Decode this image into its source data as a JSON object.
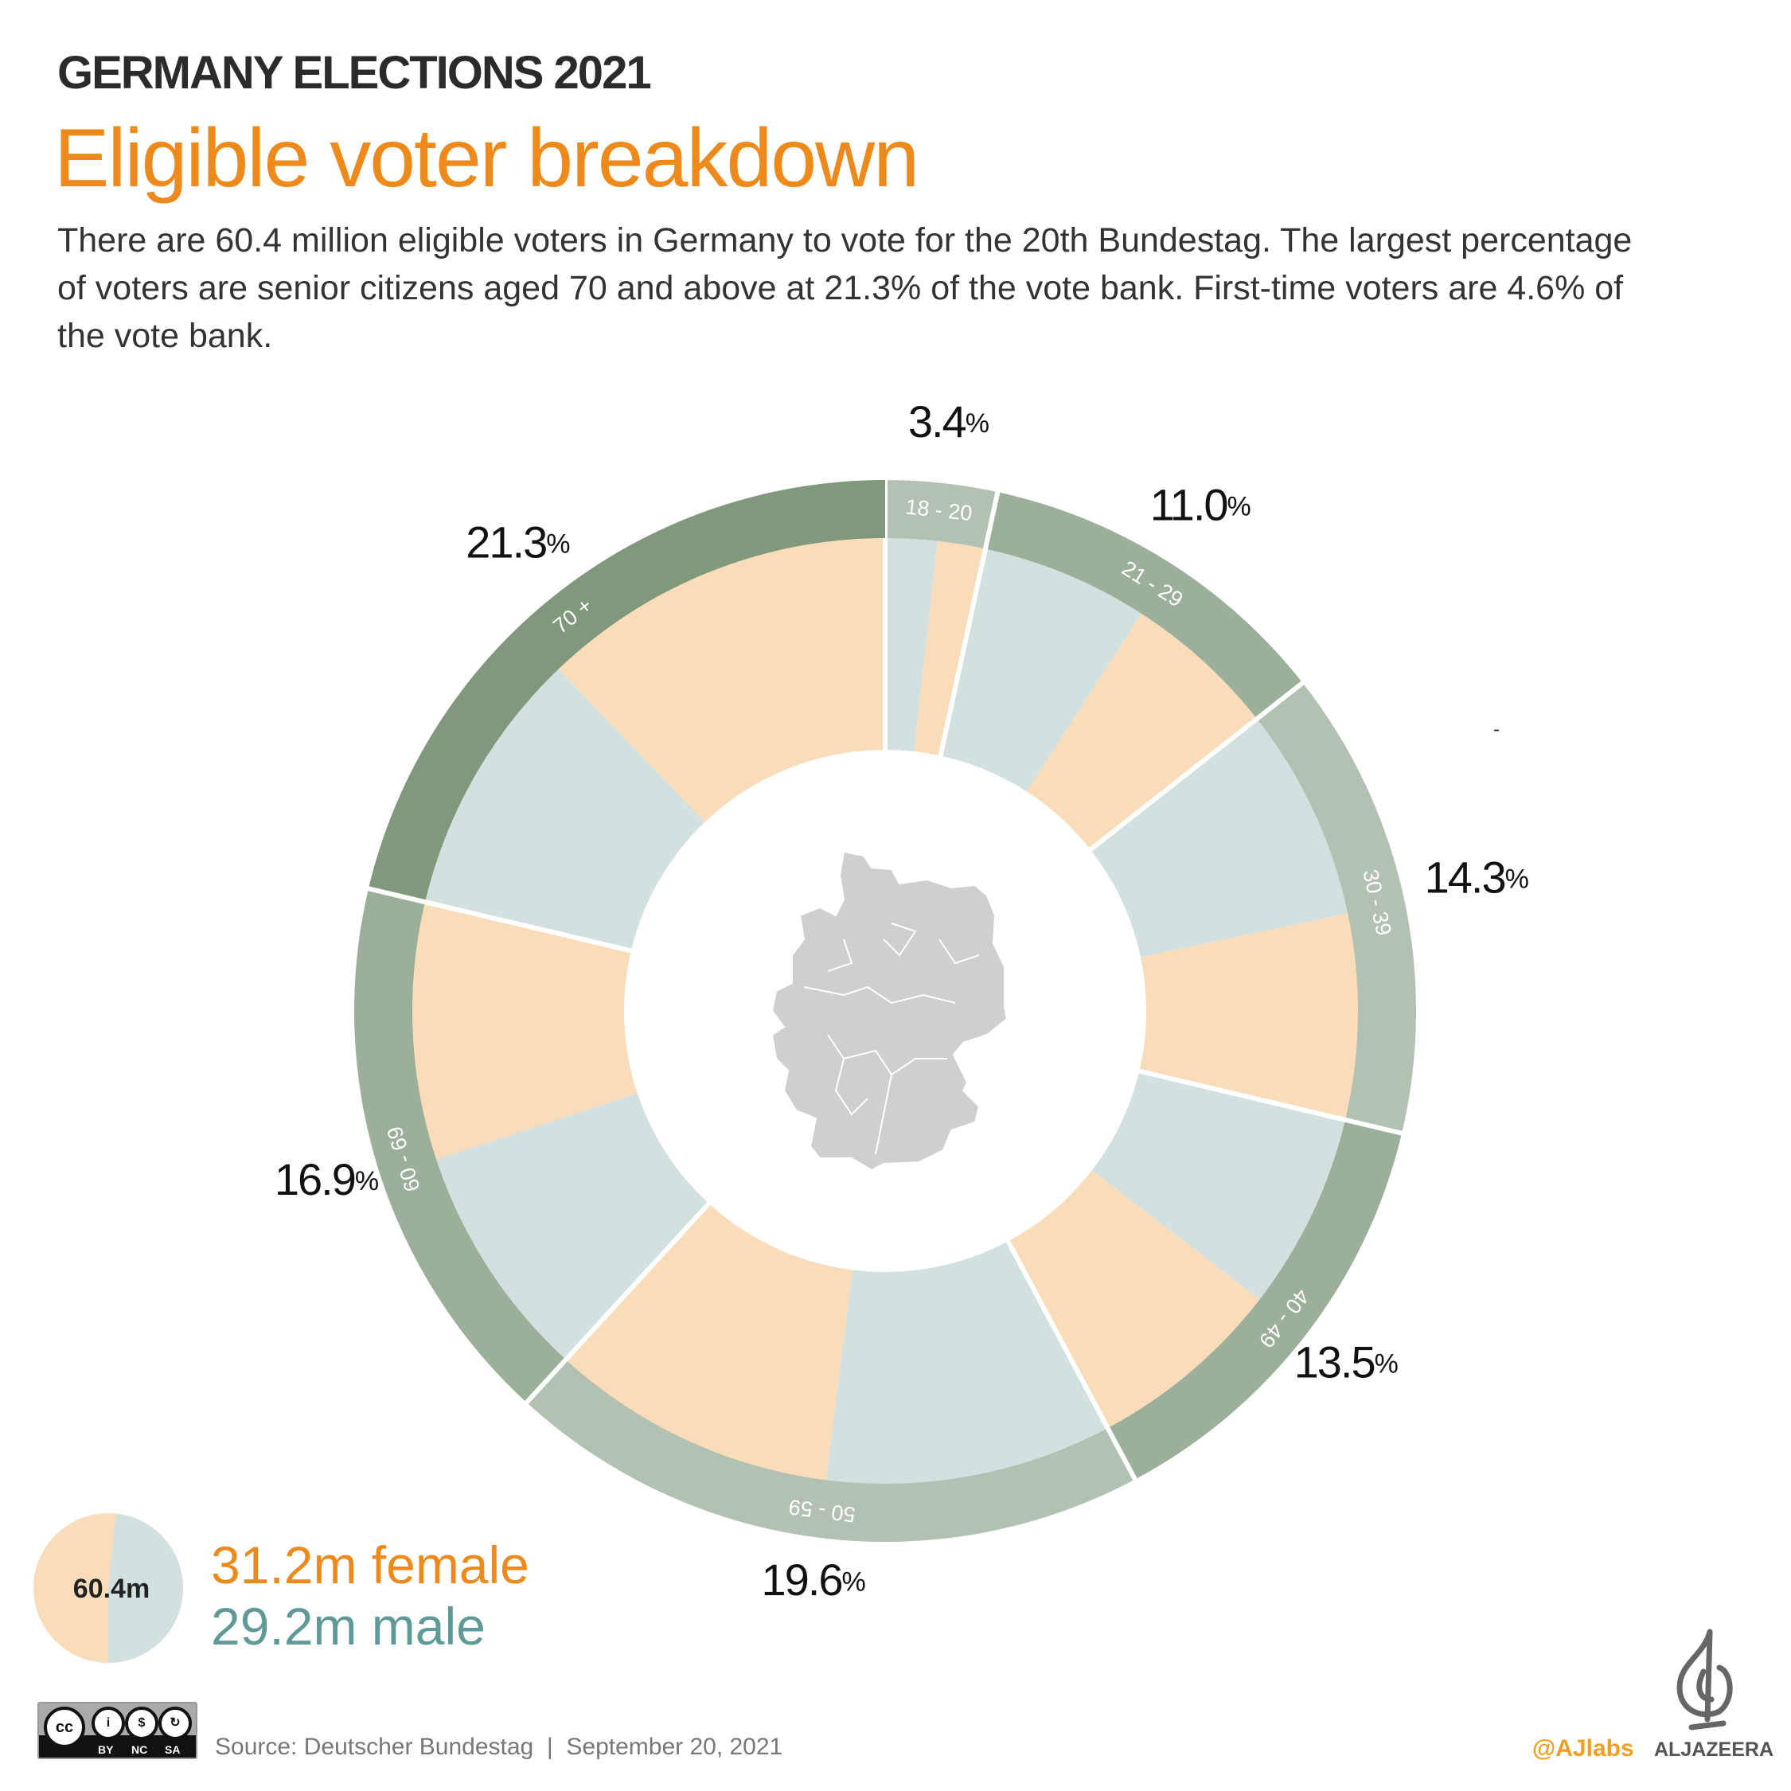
{
  "header": {
    "kicker": "GERMANY ELECTIONS 2021",
    "title": "Eligible voter breakdown",
    "description": "There are 60.4 million eligible voters in Germany to vote for the 20th Bundestag. The largest percentage of voters are senior citizens aged 70 and above at 21.3% of the vote bank. First-time voters are 4.6% of the vote bank."
  },
  "chart_data": {
    "type": "pie",
    "subtype": "nested-donut",
    "categories": [
      "18 - 20",
      "21 - 29",
      "30 - 39",
      "40 - 49",
      "50 - 59",
      "60 - 69",
      "70 +"
    ],
    "values": [
      3.4,
      11.0,
      14.3,
      13.5,
      19.6,
      16.9,
      21.3
    ],
    "value_labels": [
      "3.4",
      "11.0",
      "14.3",
      "13.5",
      "19.6",
      "16.9",
      "21.3"
    ],
    "unit": "%",
    "inner_ring_female_share": [
      0.48,
      0.48,
      0.49,
      0.5,
      0.5,
      0.52,
      0.57
    ],
    "inner_ring_order": [
      "male",
      "female"
    ],
    "start": "top",
    "direction": "clockwise",
    "colors": {
      "ring": [
        "#b3c1b2",
        "#9caf9a",
        "#b3c1b2",
        "#9caf9a",
        "#b3c1b2",
        "#9caf9a",
        "#80987c"
      ],
      "female": "#f9ddbb",
      "male": "#d2e0e0"
    }
  },
  "legend": {
    "total": "60.4m",
    "female_label": "31.2m female",
    "male_label": "29.2m male",
    "female_value": 31.2,
    "male_value": 29.2,
    "female_color": "#ee8a1c",
    "male_color": "#5f9a99"
  },
  "stray_mark": "-",
  "footer": {
    "source": "Source: Deutscher Bundestag  |  September 20, 2021",
    "license": [
      "BY",
      "NC",
      "SA"
    ],
    "license_logo": "cc",
    "handle": "@AJlabs",
    "brand": "ALJAZEERA"
  }
}
